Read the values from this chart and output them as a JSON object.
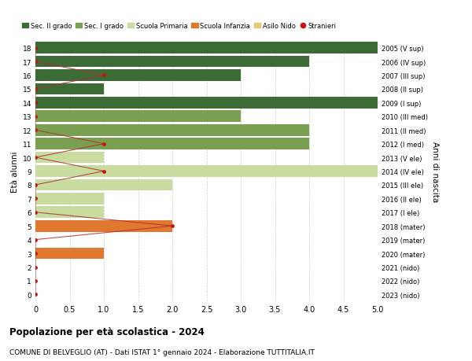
{
  "ages": [
    0,
    1,
    2,
    3,
    4,
    5,
    6,
    7,
    8,
    9,
    10,
    11,
    12,
    13,
    14,
    15,
    16,
    17,
    18
  ],
  "years": [
    "2023 (nido)",
    "2022 (nido)",
    "2021 (nido)",
    "2020 (mater)",
    "2019 (mater)",
    "2018 (mater)",
    "2017 (I ele)",
    "2016 (II ele)",
    "2015 (III ele)",
    "2014 (IV ele)",
    "2013 (V ele)",
    "2012 (I med)",
    "2011 (II med)",
    "2010 (III med)",
    "2009 (I sup)",
    "2008 (II sup)",
    "2007 (III sup)",
    "2006 (IV sup)",
    "2005 (V sup)"
  ],
  "bar_values": [
    0,
    0,
    0,
    1,
    0,
    2,
    1,
    1,
    2,
    5,
    1,
    4,
    4,
    3,
    5,
    1,
    3,
    4,
    5
  ],
  "bar_colors": [
    "#e8c870",
    "#e8c870",
    "#e8c870",
    "#e07830",
    "#e07830",
    "#e07830",
    "#c8dca0",
    "#c8dca0",
    "#c8dca0",
    "#c8dca0",
    "#c8dca0",
    "#78a050",
    "#78a050",
    "#78a050",
    "#3d6b35",
    "#3d6b35",
    "#3d6b35",
    "#3d6b35",
    "#3d6b35"
  ],
  "stranieri_values": [
    0,
    0,
    0,
    0,
    0,
    2,
    0,
    0,
    0,
    1,
    0,
    1,
    0,
    0,
    0,
    0,
    1,
    0,
    0
  ],
  "xlabel_ticks": [
    0,
    0.5,
    1.0,
    1.5,
    2.0,
    2.5,
    3.0,
    3.5,
    4.0,
    4.5,
    5.0
  ],
  "xlim": [
    0,
    5.0
  ],
  "ylim": [
    -0.5,
    18.5
  ],
  "ylabel": "Età alunni",
  "ylabel2": "Anni di nascita",
  "title": "Popolazione per età scolastica - 2024",
  "subtitle": "COMUNE DI BELVEGLIO (AT) - Dati ISTAT 1° gennaio 2024 - Elaborazione TUTTITALIA.IT",
  "legend_labels": [
    "Sec. II grado",
    "Sec. I grado",
    "Scuola Primaria",
    "Scuola Infanzia",
    "Asilo Nido",
    "Stranieri"
  ],
  "legend_colors": [
    "#3d6b35",
    "#78a050",
    "#c8dca0",
    "#e07830",
    "#e8c870",
    "#cc1111"
  ],
  "bar_height": 0.85,
  "bg_color": "#ffffff",
  "grid_color": "#cccccc",
  "stranieri_line_color": "#b03030",
  "stranieri_dot_color": "#cc1111"
}
